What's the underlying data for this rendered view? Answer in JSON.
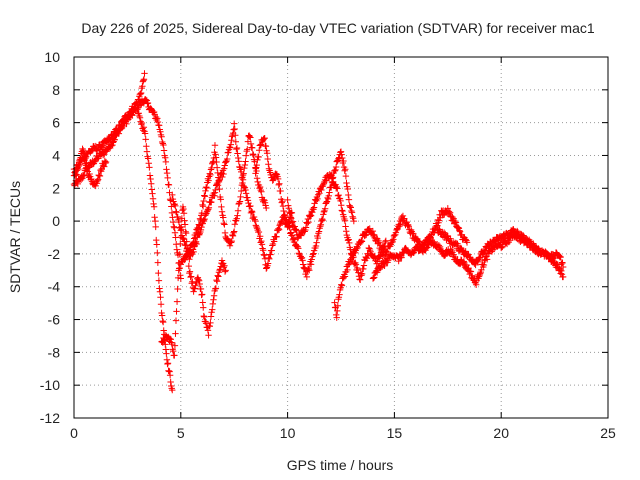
{
  "chart_data": {
    "type": "scatter",
    "title": "Day 226 of 2025, Sidereal Day-to-day VTEC variation (SDTVAR) for receiver mac1",
    "xlabel": "GPS time / hours",
    "ylabel": "SDTVAR / TECUs",
    "xlim": [
      0,
      25
    ],
    "ylim": [
      -12,
      10
    ],
    "xticks": [
      0,
      5,
      10,
      15,
      20,
      25
    ],
    "yticks": [
      -12,
      -10,
      -8,
      -6,
      -4,
      -2,
      0,
      2,
      4,
      6,
      8,
      10
    ],
    "grid": true,
    "marker": "plus",
    "color": "#ff0000",
    "series": [
      {
        "name": "mac1",
        "note": "approximate traces read from the figure; each trace is [[x, y], ...] in data units",
        "traces": [
          [
            [
              0.0,
              2.2
            ],
            [
              0.3,
              2.5
            ],
            [
              0.6,
              3.2
            ],
            [
              0.9,
              3.6
            ],
            [
              1.2,
              4.0
            ],
            [
              1.5,
              4.3
            ],
            [
              1.8,
              4.8
            ],
            [
              2.1,
              5.5
            ],
            [
              2.4,
              6.0
            ],
            [
              2.7,
              6.5
            ],
            [
              3.0,
              7.0
            ],
            [
              3.3,
              7.4
            ],
            [
              3.6,
              6.8
            ],
            [
              3.9,
              6.2
            ],
            [
              4.1,
              5.2
            ],
            [
              4.3,
              3.5
            ],
            [
              4.5,
              1.5
            ],
            [
              4.7,
              -0.5
            ],
            [
              4.9,
              -2.5
            ],
            [
              5.0,
              -3.5
            ]
          ],
          [
            [
              0.0,
              3.0
            ],
            [
              0.3,
              3.6
            ],
            [
              0.6,
              4.1
            ],
            [
              0.9,
              4.4
            ],
            [
              1.2,
              4.5
            ],
            [
              1.5,
              4.8
            ],
            [
              1.8,
              5.2
            ],
            [
              2.1,
              5.7
            ],
            [
              2.4,
              6.3
            ],
            [
              2.7,
              6.8
            ],
            [
              3.0,
              7.3
            ],
            [
              3.2,
              8.2
            ],
            [
              3.3,
              9.0
            ]
          ],
          [
            [
              0.0,
              2.6
            ],
            [
              0.2,
              3.2
            ],
            [
              0.4,
              4.4
            ],
            [
              0.5,
              3.8
            ],
            [
              0.7,
              2.8
            ],
            [
              0.9,
              2.1
            ],
            [
              1.1,
              2.4
            ],
            [
              1.3,
              3.3
            ],
            [
              1.5,
              3.6
            ]
          ],
          [
            [
              3.0,
              6.5
            ],
            [
              3.3,
              5.5
            ],
            [
              3.5,
              3.5
            ],
            [
              3.7,
              1.5
            ],
            [
              3.8,
              0.0
            ],
            [
              3.9,
              -2.0
            ],
            [
              4.0,
              -4.0
            ],
            [
              4.1,
              -5.5
            ],
            [
              4.2,
              -6.5
            ],
            [
              4.3,
              -7.8
            ],
            [
              4.4,
              -8.8
            ],
            [
              4.5,
              -9.5
            ],
            [
              4.6,
              -10.3
            ]
          ],
          [
            [
              4.1,
              -7.5
            ],
            [
              4.3,
              -7.0
            ],
            [
              4.5,
              -7.2
            ],
            [
              4.7,
              -8.2
            ],
            [
              4.8,
              -5.5
            ],
            [
              4.9,
              -3.0
            ],
            [
              5.0,
              -1.0
            ],
            [
              5.1,
              1.0
            ],
            [
              5.2,
              -0.2
            ],
            [
              5.3,
              -1.5
            ],
            [
              5.4,
              -3.0
            ],
            [
              5.6,
              -4.2
            ],
            [
              5.8,
              -3.5
            ],
            [
              6.0,
              -4.5
            ],
            [
              6.1,
              -6.0
            ],
            [
              6.3,
              -6.8
            ],
            [
              6.5,
              -5.0
            ],
            [
              6.7,
              -3.5
            ],
            [
              6.9,
              -2.5
            ],
            [
              7.1,
              -3.0
            ]
          ],
          [
            [
              4.6,
              1.5
            ],
            [
              4.8,
              0.5
            ],
            [
              5.0,
              -0.5
            ],
            [
              5.2,
              -1.5
            ],
            [
              5.4,
              -2.2
            ],
            [
              5.6,
              -1.8
            ],
            [
              5.8,
              -1.0
            ],
            [
              6.0,
              -0.2
            ],
            [
              6.2,
              0.5
            ],
            [
              6.4,
              1.2
            ],
            [
              6.6,
              1.8
            ],
            [
              6.8,
              2.5
            ],
            [
              7.0,
              3.0
            ],
            [
              7.2,
              4.0
            ],
            [
              7.4,
              5.0
            ],
            [
              7.5,
              5.8
            ],
            [
              7.6,
              4.5
            ],
            [
              7.8,
              3.0
            ],
            [
              8.0,
              2.0
            ],
            [
              8.2,
              1.0
            ],
            [
              8.4,
              0.2
            ],
            [
              8.6,
              -0.5
            ],
            [
              8.8,
              -1.5
            ],
            [
              9.0,
              -2.8
            ],
            [
              9.2,
              -2.0
            ],
            [
              9.4,
              -1.0
            ],
            [
              9.6,
              -0.5
            ],
            [
              9.8,
              0.2
            ],
            [
              10.0,
              -0.2
            ],
            [
              10.2,
              0.5
            ]
          ],
          [
            [
              5.0,
              -2.5
            ],
            [
              5.3,
              -2.0
            ],
            [
              5.6,
              -1.2
            ],
            [
              5.9,
              0.0
            ],
            [
              6.1,
              1.5
            ],
            [
              6.3,
              2.6
            ],
            [
              6.5,
              3.5
            ],
            [
              6.6,
              4.5
            ],
            [
              6.7,
              3.2
            ],
            [
              6.9,
              1.0
            ],
            [
              7.1,
              -0.8
            ],
            [
              7.3,
              -1.5
            ],
            [
              7.5,
              -0.5
            ],
            [
              7.8,
              1.5
            ],
            [
              8.0,
              3.5
            ],
            [
              8.2,
              5.3
            ],
            [
              8.4,
              4.0
            ],
            [
              8.6,
              2.5
            ],
            [
              8.8,
              1.5
            ],
            [
              9.0,
              0.8
            ]
          ],
          [
            [
              8.5,
              3.0
            ],
            [
              8.7,
              4.5
            ],
            [
              8.9,
              5.2
            ],
            [
              9.1,
              3.5
            ],
            [
              9.3,
              2.5
            ],
            [
              9.5,
              3.0
            ],
            [
              9.7,
              1.5
            ],
            [
              9.9,
              0.0
            ],
            [
              10.1,
              -0.5
            ],
            [
              10.3,
              -1.2
            ],
            [
              10.5,
              -1.8
            ],
            [
              10.7,
              -2.5
            ],
            [
              10.9,
              -3.3
            ],
            [
              11.1,
              -2.5
            ],
            [
              11.3,
              -1.5
            ],
            [
              11.5,
              -0.5
            ],
            [
              11.7,
              0.5
            ],
            [
              11.9,
              1.5
            ],
            [
              12.1,
              2.5
            ],
            [
              12.3,
              3.5
            ],
            [
              12.5,
              4.2
            ],
            [
              12.7,
              3.0
            ],
            [
              12.9,
              1.0
            ],
            [
              13.1,
              0.0
            ]
          ],
          [
            [
              10.0,
              1.2
            ],
            [
              10.2,
              0.0
            ],
            [
              10.5,
              -1.0
            ],
            [
              10.8,
              -0.5
            ],
            [
              11.1,
              0.5
            ],
            [
              11.4,
              1.5
            ],
            [
              11.7,
              2.4
            ],
            [
              12.0,
              2.8
            ],
            [
              12.3,
              2.0
            ],
            [
              12.6,
              0.5
            ],
            [
              12.8,
              -1.0
            ],
            [
              13.0,
              -2.0
            ],
            [
              13.2,
              -2.8
            ],
            [
              13.4,
              -3.5
            ],
            [
              13.6,
              -2.5
            ],
            [
              13.8,
              -1.8
            ],
            [
              14.0,
              -2.0
            ],
            [
              14.2,
              -2.5
            ],
            [
              14.4,
              -1.8
            ],
            [
              14.6,
              -1.2
            ]
          ],
          [
            [
              12.2,
              -5.0
            ],
            [
              12.3,
              -5.8
            ],
            [
              12.4,
              -4.5
            ],
            [
              12.6,
              -3.5
            ],
            [
              12.8,
              -2.8
            ],
            [
              13.0,
              -2.2
            ],
            [
              13.3,
              -1.5
            ],
            [
              13.6,
              -0.8
            ],
            [
              13.9,
              -0.5
            ],
            [
              14.2,
              -1.2
            ],
            [
              14.5,
              -2.0
            ],
            [
              14.8,
              -1.5
            ],
            [
              15.1,
              -0.5
            ],
            [
              15.4,
              0.2
            ],
            [
              15.7,
              -0.5
            ],
            [
              16.0,
              -1.2
            ],
            [
              16.3,
              -1.5
            ],
            [
              16.6,
              -1.0
            ],
            [
              16.9,
              -0.5
            ],
            [
              17.2,
              0.5
            ],
            [
              17.5,
              0.6
            ],
            [
              17.8,
              0.0
            ],
            [
              18.1,
              -0.8
            ],
            [
              18.4,
              -1.3
            ]
          ],
          [
            [
              14.0,
              -3.5
            ],
            [
              14.3,
              -2.8
            ],
            [
              14.6,
              -2.5
            ],
            [
              14.9,
              -2.0
            ],
            [
              15.2,
              -2.3
            ],
            [
              15.5,
              -1.8
            ],
            [
              15.8,
              -2.0
            ],
            [
              16.1,
              -1.6
            ],
            [
              16.4,
              -1.8
            ],
            [
              16.7,
              -1.2
            ],
            [
              17.0,
              -1.5
            ],
            [
              17.3,
              -2.0
            ],
            [
              17.6,
              -1.8
            ],
            [
              17.9,
              -2.4
            ],
            [
              18.2,
              -2.5
            ],
            [
              18.5,
              -3.0
            ],
            [
              18.8,
              -3.8
            ],
            [
              19.1,
              -2.8
            ],
            [
              19.4,
              -2.0
            ],
            [
              19.7,
              -1.5
            ],
            [
              20.0,
              -1.5
            ],
            [
              20.3,
              -1.2
            ],
            [
              20.6,
              -0.8
            ],
            [
              20.9,
              -1.1
            ],
            [
              21.2,
              -1.3
            ],
            [
              21.5,
              -1.6
            ],
            [
              21.8,
              -1.9
            ],
            [
              22.1,
              -2.1
            ],
            [
              22.4,
              -2.4
            ],
            [
              22.7,
              -2.9
            ],
            [
              22.9,
              -3.4
            ]
          ],
          [
            [
              17.0,
              -0.5
            ],
            [
              17.3,
              -0.8
            ],
            [
              17.6,
              -1.2
            ],
            [
              17.9,
              -1.5
            ],
            [
              18.2,
              -1.8
            ],
            [
              18.5,
              -2.2
            ],
            [
              18.8,
              -2.5
            ],
            [
              19.1,
              -2.0
            ],
            [
              19.4,
              -1.5
            ],
            [
              19.7,
              -1.2
            ],
            [
              20.0,
              -1.0
            ],
            [
              20.3,
              -0.8
            ],
            [
              20.6,
              -0.6
            ],
            [
              20.9,
              -0.9
            ],
            [
              21.2,
              -1.2
            ],
            [
              21.5,
              -1.5
            ],
            [
              21.8,
              -1.8
            ],
            [
              22.1,
              -2.0
            ],
            [
              22.4,
              -2.2
            ],
            [
              22.7,
              -2.0
            ],
            [
              22.9,
              -2.8
            ]
          ]
        ]
      }
    ]
  }
}
